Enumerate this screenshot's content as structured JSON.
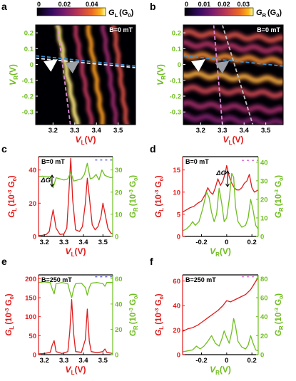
{
  "chart_data": [
    {
      "panel": "a",
      "type": "heatmap",
      "annotation": "B=0 mT",
      "xlabel": "V",
      "xlabel_sub": "L",
      "xlabel_unit": "(V)",
      "ylabel": "V",
      "ylabel_sub": "R",
      "ylabel_unit": "(V)",
      "xlim": [
        3.12,
        3.58
      ],
      "ylim": [
        -0.38,
        0.25
      ],
      "xticks": [
        "3.2",
        "3.3",
        "3.4",
        "3.5"
      ],
      "xtick_values": [
        3.2,
        3.3,
        3.4,
        3.5
      ],
      "yticks": [
        "0.2",
        "0.1",
        "0",
        "-0.1",
        "-0.2",
        "-0.3"
      ],
      "ytick_values": [
        0.2,
        0.1,
        0,
        -0.1,
        -0.2,
        -0.3
      ],
      "colorbar": {
        "label": "G",
        "label_sub": "L",
        "unit": "(G",
        "unit_sub": "0",
        "unit_close": ")",
        "ticks": [
          "0",
          "0.02",
          "0.04"
        ],
        "tick_values": [
          0,
          0.02,
          0.04
        ],
        "range": [
          0,
          0.05
        ],
        "colormap": "inferno"
      },
      "ridges": [
        {
          "x_at_top": 3.22,
          "slope": 0.58,
          "intensity": 0.95
        },
        {
          "x_at_top": 3.3,
          "slope": 0.5,
          "intensity": 0.55
        },
        {
          "x_at_top": 3.36,
          "slope": 0.45,
          "intensity": 0.85
        },
        {
          "x_at_top": 3.43,
          "slope": 0.4,
          "intensity": 0.45
        },
        {
          "x_at_top": 3.48,
          "slope": 0.38,
          "intensity": 0.65
        }
      ],
      "guide_lines": [
        {
          "color": "#e8e8ff",
          "style": "dashed",
          "points": [
            [
              3.12,
              0.04
            ],
            [
              3.58,
              -0.02
            ]
          ]
        },
        {
          "color": "#3a8fd0",
          "style": "dashed",
          "points": [
            [
              3.12,
              0.055
            ],
            [
              3.58,
              -0.01
            ]
          ]
        },
        {
          "color": "#d98ad9",
          "style": "dashed",
          "points": [
            [
              3.22,
              0.25
            ],
            [
              3.28,
              -0.38
            ]
          ]
        }
      ],
      "arrows": [
        {
          "color": "#ffffff",
          "at": [
            3.22,
            0.03
          ]
        },
        {
          "color": "#9aa0a6",
          "at": [
            3.32,
            0.02
          ]
        }
      ]
    },
    {
      "panel": "b",
      "type": "heatmap",
      "annotation": "B=0 mT",
      "xlabel": "V",
      "xlabel_sub": "L",
      "xlabel_unit": "(V)",
      "ylabel": "V",
      "ylabel_sub": "R",
      "ylabel_unit": "(V)",
      "xlim": [
        3.12,
        3.58
      ],
      "ylim": [
        -0.38,
        0.25
      ],
      "xticks": [
        "3.2",
        "3.3",
        "3.4",
        "3.5"
      ],
      "xtick_values": [
        3.2,
        3.3,
        3.4,
        3.5
      ],
      "yticks": [
        "0.2",
        "0.1",
        "0",
        "-0.1",
        "-0.2",
        "-0.3"
      ],
      "ytick_values": [
        0.2,
        0.1,
        0,
        -0.1,
        -0.2,
        -0.3
      ],
      "colorbar": {
        "label": "G",
        "label_sub": "R",
        "unit": "(G",
        "unit_sub": "0",
        "unit_close": ")",
        "ticks": [
          "0",
          "0.01",
          "0.02",
          "0.03"
        ],
        "tick_values": [
          0,
          0.01,
          0.02,
          0.03
        ],
        "range": [
          0,
          0.035
        ],
        "colormap": "inferno"
      },
      "ridges": [
        {
          "vr_at_left": 0.2,
          "intensity": 0.75
        },
        {
          "vr_at_left": 0.13,
          "intensity": 0.6
        },
        {
          "vr_at_left": 0.06,
          "intensity": 0.9
        },
        {
          "vr_at_left": -0.06,
          "intensity": 0.95
        },
        {
          "vr_at_left": -0.15,
          "intensity": 0.7
        },
        {
          "vr_at_left": -0.25,
          "intensity": 0.55
        },
        {
          "vr_at_left": -0.33,
          "intensity": 0.45
        }
      ],
      "guide_lines": [
        {
          "color": "#3a8fd0",
          "style": "dashed",
          "points": [
            [
              3.12,
              0.055
            ],
            [
              3.58,
              -0.01
            ]
          ]
        },
        {
          "color": "#d98ad9",
          "style": "dashed",
          "points": [
            [
              3.26,
              0.25
            ],
            [
              3.3,
              -0.38
            ]
          ]
        },
        {
          "color": "#c0c0c0",
          "style": "dashed",
          "points": [
            [
              3.3,
              0.25
            ],
            [
              3.44,
              -0.38
            ]
          ]
        }
      ],
      "arrows": [
        {
          "color": "#ffffff",
          "at": [
            3.22,
            0.03
          ]
        },
        {
          "color": "#9aa0a6",
          "at": [
            3.33,
            0.02
          ]
        }
      ]
    },
    {
      "panel": "c",
      "type": "line",
      "annotation": "B=0 mT",
      "delta_label": "ΔG",
      "xlabel": "V",
      "xlabel_sub": "L",
      "xlabel_unit": "(V)",
      "ylabel_left": "G",
      "ylabel_left_sub": "L",
      "ylabel_left_unit": "(10",
      "ylabel_left_exp": "-3",
      "ylabel_left_unit_end": " G",
      "ylabel_left_unit_sub": "0",
      "ylabel_left_close": ")",
      "ylabel_right": "G",
      "ylabel_right_sub": "R",
      "ylabel_right_unit": "(10",
      "ylabel_right_exp": "-3",
      "ylabel_right_unit_end": " G",
      "ylabel_right_unit_sub": "0",
      "ylabel_right_close": ")",
      "xlim": [
        3.17,
        3.55
      ],
      "ylim_left": [
        0,
        48
      ],
      "ylim_right": [
        0,
        36
      ],
      "xticks": [
        "3.2",
        "3.3",
        "3.4",
        "3.5"
      ],
      "xtick_values": [
        3.2,
        3.3,
        3.4,
        3.5
      ],
      "yticks_left": [
        "0",
        "20",
        "40"
      ],
      "ytick_left_values": [
        0,
        20,
        40
      ],
      "yticks_right": [
        "0",
        "10",
        "20",
        "30"
      ],
      "ytick_right_values": [
        0,
        10,
        20,
        30
      ],
      "series": [
        {
          "axis": "left",
          "color": "#e01b1b",
          "x": [
            3.17,
            3.19,
            3.21,
            3.225,
            3.235,
            3.245,
            3.26,
            3.28,
            3.3,
            3.315,
            3.325,
            3.335,
            3.345,
            3.36,
            3.38,
            3.395,
            3.41,
            3.42,
            3.43,
            3.445,
            3.46,
            3.475,
            3.49,
            3.5,
            3.51,
            3.525,
            3.54,
            3.55
          ],
          "y": [
            0.5,
            0.7,
            1.2,
            3.0,
            10.0,
            16.0,
            5.0,
            1.2,
            1.5,
            5.0,
            25.0,
            47.0,
            22.0,
            4.0,
            3.0,
            6.0,
            20.0,
            35.0,
            24.0,
            7.0,
            4.0,
            6.0,
            12.0,
            20.0,
            14.0,
            5.0,
            2.0,
            1.5
          ]
        },
        {
          "axis": "right",
          "color": "#6fbe1e",
          "x": [
            3.17,
            3.19,
            3.21,
            3.23,
            3.245,
            3.26,
            3.28,
            3.3,
            3.32,
            3.335,
            3.35,
            3.37,
            3.39,
            3.405,
            3.42,
            3.435,
            3.45,
            3.465,
            3.48,
            3.495,
            3.51,
            3.525,
            3.54,
            3.55
          ],
          "y": [
            27.0,
            27.2,
            26.9,
            27.0,
            22.0,
            26.5,
            26.0,
            25.5,
            26.0,
            29.0,
            25.0,
            25.5,
            26.0,
            28.0,
            33.0,
            26.0,
            26.5,
            28.0,
            25.5,
            30.0,
            27.5,
            27.0,
            26.5,
            26.8
          ]
        }
      ],
      "markers": [
        {
          "axis": "right",
          "color": "#6666dd",
          "style": "dashed",
          "y": 34.5,
          "x": [
            3.46,
            3.55
          ]
        }
      ]
    },
    {
      "panel": "d",
      "type": "line",
      "annotation": "B=0 mT",
      "delta_label": "ΔG",
      "xlabel": "V",
      "xlabel_sub": "R",
      "xlabel_unit": "(V)",
      "ylabel_left": "G",
      "ylabel_left_sub": "L",
      "ylabel_left_unit": "(10",
      "ylabel_left_exp": "-3",
      "ylabel_left_unit_end": " G",
      "ylabel_left_unit_sub": "0",
      "ylabel_left_close": ")",
      "ylabel_right": "G",
      "ylabel_right_sub": "R",
      "ylabel_right_unit": "(10",
      "ylabel_right_exp": "-3",
      "ylabel_right_unit_end": " G",
      "ylabel_right_unit_sub": "0",
      "ylabel_right_close": ")",
      "xlim": [
        -0.35,
        0.25
      ],
      "ylim_left": [
        0,
        18
      ],
      "ylim_right": [
        0,
        43
      ],
      "xticks": [
        "-0.2",
        "0",
        "0.2"
      ],
      "xtick_values": [
        -0.2,
        0,
        0.2
      ],
      "yticks_left": [
        "0",
        "5",
        "10",
        "15"
      ],
      "ytick_left_values": [
        0,
        5,
        10,
        15
      ],
      "yticks_right": [
        "0",
        "10",
        "20",
        "30",
        "40"
      ],
      "ytick_right_values": [
        0,
        10,
        20,
        30,
        40
      ],
      "series": [
        {
          "axis": "left",
          "color": "#e01b1b",
          "x": [
            -0.35,
            -0.32,
            -0.29,
            -0.26,
            -0.23,
            -0.2,
            -0.17,
            -0.15,
            -0.13,
            -0.11,
            -0.09,
            -0.07,
            -0.05,
            -0.03,
            -0.01,
            0.0,
            0.02,
            0.04,
            0.06,
            0.08,
            0.1,
            0.12,
            0.14,
            0.16,
            0.18,
            0.2,
            0.22,
            0.25
          ],
          "y": [
            5.5,
            6.0,
            6.5,
            6.8,
            7.5,
            8.0,
            9.5,
            11.0,
            10.0,
            9.5,
            11.0,
            13.0,
            11.5,
            12.5,
            14.5,
            16.0,
            13.5,
            12.0,
            11.0,
            10.5,
            10.5,
            11.0,
            12.0,
            12.5,
            14.0,
            11.0,
            10.0,
            10.5
          ]
        },
        {
          "axis": "right",
          "color": "#6fbe1e",
          "x": [
            -0.35,
            -0.32,
            -0.29,
            -0.27,
            -0.25,
            -0.22,
            -0.19,
            -0.16,
            -0.14,
            -0.12,
            -0.1,
            -0.08,
            -0.06,
            -0.04,
            -0.02,
            0.0,
            0.02,
            0.04,
            0.055,
            0.07,
            0.09,
            0.12,
            0.15,
            0.17,
            0.19,
            0.21,
            0.23,
            0.25
          ],
          "y": [
            3.0,
            4.0,
            6.0,
            8.0,
            6.0,
            8.0,
            15.0,
            24.0,
            21.0,
            13.0,
            8.0,
            12.0,
            26.0,
            18.0,
            8.0,
            10.0,
            20.0,
            34.0,
            32.0,
            16.0,
            8.0,
            5.0,
            6.0,
            10.0,
            20.0,
            14.0,
            6.0,
            4.0
          ]
        }
      ],
      "markers": [
        {
          "axis": "right",
          "color": "#dd77dd",
          "style": "dashed",
          "y": 41.0,
          "x": [
            0.12,
            0.25
          ]
        }
      ]
    },
    {
      "panel": "e",
      "type": "line",
      "annotation": "B=250 mT",
      "xlabel": "V",
      "xlabel_sub": "L",
      "xlabel_unit": "(V)",
      "ylabel_left": "G",
      "ylabel_left_sub": "L",
      "ylabel_left_unit": "(10",
      "ylabel_left_exp": "-3",
      "ylabel_left_unit_end": " G",
      "ylabel_left_unit_sub": "0",
      "ylabel_left_close": ")",
      "ylabel_right": "G",
      "ylabel_right_sub": "R",
      "ylabel_right_unit": "(10",
      "ylabel_right_exp": "-3",
      "ylabel_right_unit_end": " G",
      "ylabel_right_unit_sub": "0",
      "ylabel_right_close": ")",
      "xlim": [
        3.17,
        3.55
      ],
      "ylim_left": [
        0,
        210
      ],
      "ylim_right": [
        0,
        63
      ],
      "xticks": [
        "3.2",
        "3.3",
        "3.4",
        "3.5"
      ],
      "xtick_values": [
        3.2,
        3.3,
        3.4,
        3.5
      ],
      "yticks_left": [
        "0",
        "50",
        "100",
        "150",
        "200"
      ],
      "ytick_left_values": [
        0,
        50,
        100,
        150,
        200
      ],
      "yticks_right": [
        "0",
        "20",
        "40",
        "60"
      ],
      "ytick_right_values": [
        0,
        20,
        40,
        60
      ],
      "series": [
        {
          "axis": "left",
          "color": "#e01b1b",
          "x": [
            3.17,
            3.2,
            3.23,
            3.24,
            3.25,
            3.26,
            3.29,
            3.32,
            3.33,
            3.34,
            3.35,
            3.36,
            3.39,
            3.41,
            3.42,
            3.43,
            3.44,
            3.47,
            3.5,
            3.51,
            3.52,
            3.55
          ],
          "y": [
            2,
            3,
            6,
            25,
            37,
            8,
            3,
            8,
            60,
            145,
            55,
            8,
            6,
            40,
            120,
            35,
            8,
            5,
            8,
            15,
            6,
            3
          ]
        },
        {
          "axis": "right",
          "color": "#6fbe1e",
          "x": [
            3.17,
            3.2,
            3.23,
            3.24,
            3.25,
            3.26,
            3.29,
            3.32,
            3.33,
            3.34,
            3.35,
            3.36,
            3.39,
            3.41,
            3.42,
            3.43,
            3.44,
            3.47,
            3.5,
            3.51,
            3.52,
            3.55
          ],
          "y": [
            57,
            57.5,
            57,
            52,
            48,
            56,
            57,
            56,
            50,
            45,
            52,
            56,
            56.5,
            53,
            47,
            53,
            56.5,
            57,
            56,
            54,
            57,
            57
          ]
        }
      ],
      "markers": [
        {
          "axis": "right",
          "color": "#6666dd",
          "style": "dashed",
          "y": 61.5,
          "x": [
            3.46,
            3.55
          ]
        }
      ]
    },
    {
      "panel": "f",
      "type": "line",
      "annotation": "B=250 mT",
      "xlabel": "V",
      "xlabel_sub": "R",
      "xlabel_unit": "(V)",
      "ylabel_left": "G",
      "ylabel_left_sub": "L",
      "ylabel_left_unit": "(10",
      "ylabel_left_exp": "-3",
      "ylabel_left_unit_end": " G",
      "ylabel_left_unit_sub": "0",
      "ylabel_left_close": ")",
      "ylabel_right": "G",
      "ylabel_right_sub": "R",
      "ylabel_right_unit": "(10",
      "ylabel_right_exp": "-3",
      "ylabel_right_unit_end": " G",
      "ylabel_right_unit_sub": "0",
      "ylabel_right_close": ")",
      "xlim": [
        -0.35,
        0.25
      ],
      "ylim_left": [
        0,
        65
      ],
      "ylim_right": [
        0,
        84
      ],
      "xticks": [
        "-0.2",
        "0",
        "0.2"
      ],
      "xtick_values": [
        -0.2,
        0,
        0.2
      ],
      "yticks_left": [
        "0",
        "20",
        "40",
        "60"
      ],
      "ytick_left_values": [
        0,
        20,
        40,
        60
      ],
      "yticks_right": [
        "0",
        "20",
        "40",
        "60",
        "80"
      ],
      "ytick_right_values": [
        0,
        20,
        40,
        60,
        80
      ],
      "series": [
        {
          "axis": "left",
          "color": "#e01b1b",
          "x": [
            -0.35,
            -0.31,
            -0.27,
            -0.23,
            -0.19,
            -0.15,
            -0.11,
            -0.07,
            -0.03,
            0.0,
            0.03,
            0.07,
            0.11,
            0.15,
            0.19,
            0.22,
            0.25
          ],
          "y": [
            19,
            21,
            22,
            24,
            27,
            30,
            33,
            36,
            40,
            44,
            43,
            45,
            47,
            49,
            53,
            58,
            63
          ]
        },
        {
          "axis": "right",
          "color": "#6fbe1e",
          "x": [
            -0.35,
            -0.31,
            -0.27,
            -0.24,
            -0.21,
            -0.18,
            -0.15,
            -0.12,
            -0.09,
            -0.06,
            -0.04,
            -0.02,
            0.0,
            0.02,
            0.04,
            0.055,
            0.07,
            0.09,
            0.12,
            0.15,
            0.17,
            0.19,
            0.21,
            0.23,
            0.25
          ],
          "y": [
            3,
            4,
            5,
            9,
            6,
            9,
            14,
            20,
            12,
            9,
            16,
            25,
            18,
            12,
            24,
            38,
            30,
            14,
            8,
            6,
            10,
            20,
            12,
            5,
            4
          ]
        }
      ],
      "markers": [
        {
          "axis": "right",
          "color": "#dd77dd",
          "style": "dashed",
          "y": 82,
          "x": [
            0.12,
            0.25
          ]
        }
      ]
    }
  ]
}
